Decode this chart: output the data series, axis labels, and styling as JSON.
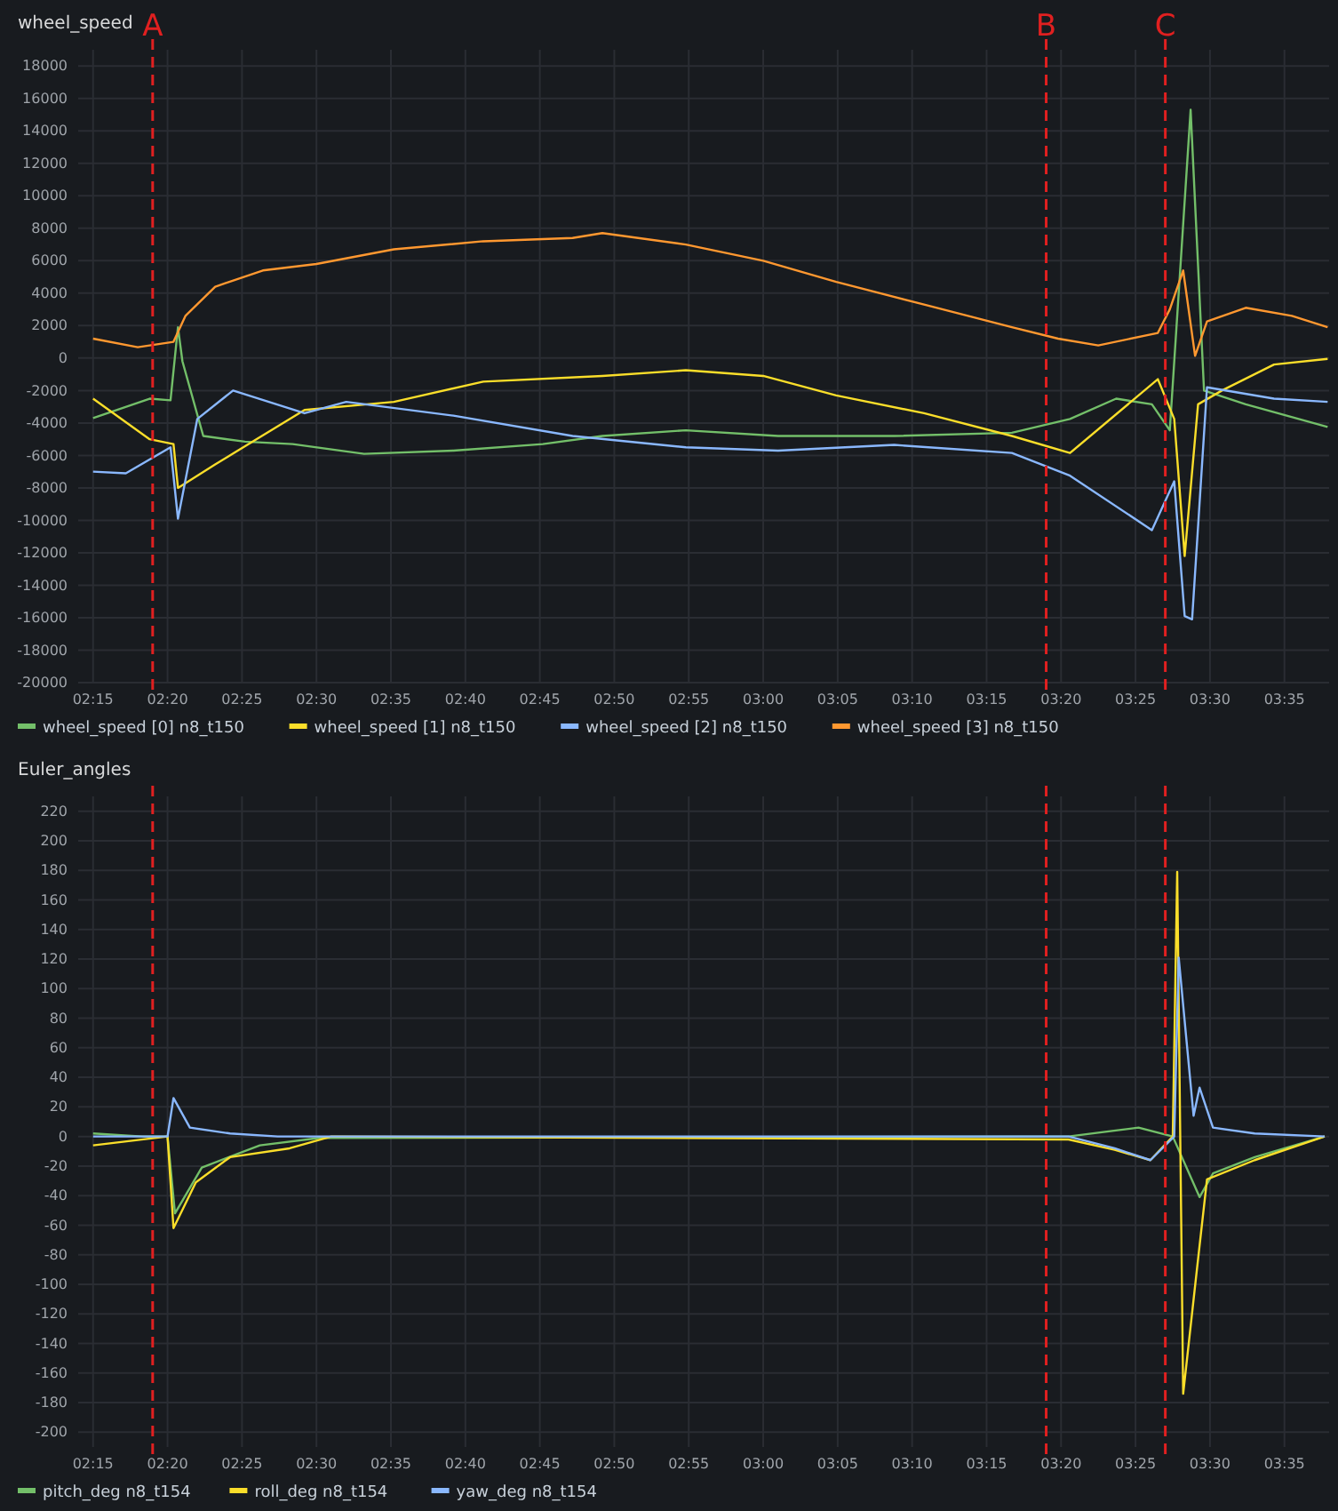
{
  "chart_data": [
    {
      "type": "line",
      "title": "wheel_speed",
      "xlim": [
        134,
        218
      ],
      "ylim": [
        -20000,
        19000
      ],
      "xticks": [
        {
          "value": 135,
          "label": "02:15"
        },
        {
          "value": 140,
          "label": "02:20"
        },
        {
          "value": 145,
          "label": "02:25"
        },
        {
          "value": 150,
          "label": "02:30"
        },
        {
          "value": 155,
          "label": "02:35"
        },
        {
          "value": 160,
          "label": "02:40"
        },
        {
          "value": 165,
          "label": "02:45"
        },
        {
          "value": 170,
          "label": "02:50"
        },
        {
          "value": 175,
          "label": "02:55"
        },
        {
          "value": 180,
          "label": "03:00"
        },
        {
          "value": 185,
          "label": "03:05"
        },
        {
          "value": 190,
          "label": "03:10"
        },
        {
          "value": 195,
          "label": "03:15"
        },
        {
          "value": 200,
          "label": "03:20"
        },
        {
          "value": 205,
          "label": "03:25"
        },
        {
          "value": 210,
          "label": "03:30"
        },
        {
          "value": 215,
          "label": "03:35"
        }
      ],
      "yticks": [
        -20000,
        -18000,
        -16000,
        -14000,
        -12000,
        -10000,
        -8000,
        -6000,
        -4000,
        -2000,
        0,
        2000,
        4000,
        6000,
        8000,
        10000,
        12000,
        14000,
        16000,
        18000
      ],
      "grid": true,
      "legend": "bottom",
      "line_style": "solid",
      "ref_lines": [
        {
          "axis": "x",
          "value": 139,
          "label": "A",
          "color": "#e02020",
          "line_style": "dashed"
        },
        {
          "axis": "x",
          "value": 199,
          "label": "B",
          "color": "#e02020",
          "line_style": "dashed"
        },
        {
          "axis": "x",
          "value": 207,
          "label": "C",
          "color": "#e02020",
          "line_style": "dashed"
        }
      ],
      "series": [
        {
          "name": "wheel_speed [0] n8_t150",
          "color": "#73bf69",
          "x": [
            135,
            138.8,
            140.2,
            140.7,
            141,
            142.4,
            145.2,
            148.4,
            153.2,
            159.2,
            165.2,
            169.2,
            174.8,
            181,
            188.8,
            196.7,
            200.6,
            203.7,
            206.1,
            207.3,
            208.7,
            209.6,
            212.4,
            217.9
          ],
          "values": [
            -3700,
            -2500,
            -2600,
            1900,
            -200,
            -4800,
            -5150,
            -5300,
            -5900,
            -5700,
            -5300,
            -4800,
            -4450,
            -4800,
            -4800,
            -4600,
            -3750,
            -2500,
            -2850,
            -4450,
            15300,
            -2000,
            -2850,
            -4250
          ]
        },
        {
          "name": "wheel_speed [1] n8_t150",
          "color": "#fade2a",
          "x": [
            135,
            138.8,
            140.4,
            140.7,
            143.2,
            149.2,
            155.2,
            161.2,
            169.2,
            174.8,
            180,
            184.9,
            190.8,
            196.7,
            200.6,
            206.5,
            207.6,
            208.3,
            209.2,
            210.8,
            214.3,
            217.9
          ],
          "values": [
            -2500,
            -5000,
            -5300,
            -8000,
            -6550,
            -3200,
            -2700,
            -1450,
            -1100,
            -750,
            -1100,
            -2300,
            -3400,
            -4800,
            -5850,
            -1300,
            -3750,
            -12200,
            -2850,
            -2000,
            -400,
            -50
          ]
        },
        {
          "name": "wheel_speed [2] n8_t150",
          "color": "#8ab8ff",
          "x": [
            135,
            137.2,
            140.2,
            140.7,
            142,
            144.4,
            149.2,
            152,
            159.2,
            167.2,
            174.8,
            181,
            188.8,
            196.7,
            200.6,
            206.1,
            207.6,
            208.3,
            208.8,
            209.8,
            214.3,
            217.9
          ],
          "values": [
            -7000,
            -7100,
            -5500,
            -9900,
            -3750,
            -2000,
            -3400,
            -2700,
            -3550,
            -4800,
            -5500,
            -5700,
            -5350,
            -5850,
            -7250,
            -10600,
            -7600,
            -15900,
            -16100,
            -1800,
            -2500,
            -2700
          ]
        },
        {
          "name": "wheel_speed [3] n8_t150",
          "color": "#ff9830",
          "x": [
            135,
            138,
            140.4,
            141.2,
            143.2,
            146.4,
            150,
            155.2,
            161.2,
            167.2,
            169.2,
            174.8,
            180,
            184.9,
            190.8,
            196.7,
            199.8,
            202.5,
            206.5,
            207.3,
            208.2,
            209,
            209.8,
            212.4,
            215.5,
            217.9
          ],
          "values": [
            1200,
            670,
            1000,
            2600,
            4400,
            5400,
            5800,
            6700,
            7200,
            7400,
            7700,
            7000,
            6000,
            4700,
            3300,
            1900,
            1200,
            780,
            1550,
            3000,
            5400,
            140,
            2260,
            3100,
            2600,
            1900
          ]
        }
      ]
    },
    {
      "type": "line",
      "title": "Euler_angles",
      "xlim": [
        134,
        218
      ],
      "ylim": [
        -210,
        230
      ],
      "xticks": [
        {
          "value": 135,
          "label": "02:15"
        },
        {
          "value": 140,
          "label": "02:20"
        },
        {
          "value": 145,
          "label": "02:25"
        },
        {
          "value": 150,
          "label": "02:30"
        },
        {
          "value": 155,
          "label": "02:35"
        },
        {
          "value": 160,
          "label": "02:40"
        },
        {
          "value": 165,
          "label": "02:45"
        },
        {
          "value": 170,
          "label": "02:50"
        },
        {
          "value": 175,
          "label": "02:55"
        },
        {
          "value": 180,
          "label": "03:00"
        },
        {
          "value": 185,
          "label": "03:05"
        },
        {
          "value": 190,
          "label": "03:10"
        },
        {
          "value": 195,
          "label": "03:15"
        },
        {
          "value": 200,
          "label": "03:20"
        },
        {
          "value": 205,
          "label": "03:25"
        },
        {
          "value": 210,
          "label": "03:30"
        },
        {
          "value": 215,
          "label": "03:35"
        }
      ],
      "yticks": [
        -200,
        -180,
        -160,
        -140,
        -120,
        -100,
        -80,
        -60,
        -40,
        -20,
        0,
        20,
        40,
        60,
        80,
        100,
        120,
        140,
        160,
        180,
        200,
        220
      ],
      "grid": true,
      "legend": "bottom",
      "line_style": "solid",
      "ref_lines": [
        {
          "axis": "x",
          "value": 139,
          "color": "#e02020",
          "line_style": "dashed"
        },
        {
          "axis": "x",
          "value": 199,
          "color": "#e02020",
          "line_style": "dashed"
        },
        {
          "axis": "x",
          "value": 207,
          "color": "#e02020",
          "line_style": "dashed"
        }
      ],
      "series": [
        {
          "name": "pitch_deg n8_t154",
          "color": "#73bf69",
          "x": [
            135,
            138.3,
            140,
            140.5,
            142.3,
            146.2,
            150.2,
            197.3,
            200.5,
            205.2,
            207.5,
            209.3,
            210.2,
            213,
            217.7
          ],
          "values": [
            2,
            0,
            0,
            -52,
            -21,
            -6,
            -1,
            0,
            0,
            6,
            0,
            -41,
            -25,
            -14,
            0
          ]
        },
        {
          "name": "roll_deg n8_t154",
          "color": "#fade2a",
          "x": [
            135,
            140,
            140.4,
            141.9,
            144.2,
            148.2,
            151,
            200.5,
            203.6,
            206,
            207.5,
            207.8,
            208.2,
            209.1,
            209.8,
            213,
            217.7
          ],
          "values": [
            -6,
            0,
            -62,
            -31,
            -14,
            -8,
            0,
            -2,
            -9,
            -16,
            0,
            179,
            -174,
            -92,
            -29,
            -16,
            0
          ]
        },
        {
          "name": "yaw_deg n8_t154",
          "color": "#8ab8ff",
          "x": [
            135,
            140,
            140.4,
            141.5,
            144.2,
            147.4,
            200.5,
            203.6,
            206,
            207.6,
            207.9,
            208.9,
            209.3,
            210.2,
            213,
            217.7
          ],
          "values": [
            0,
            0,
            26,
            6,
            2,
            0,
            0,
            -8,
            -16,
            0,
            121,
            14,
            33,
            6,
            2,
            0
          ]
        }
      ]
    }
  ]
}
